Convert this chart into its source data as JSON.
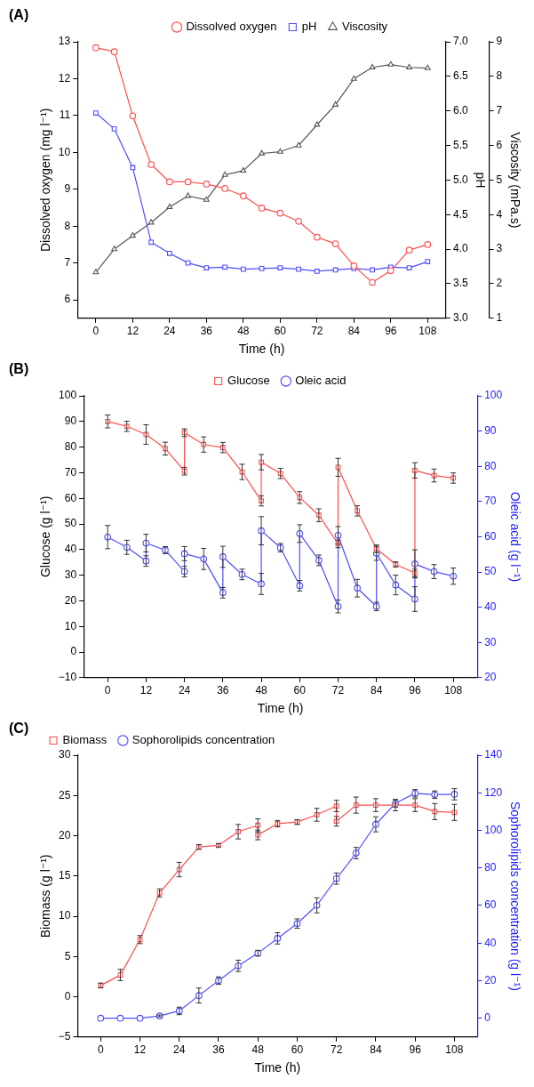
{
  "chart_data": [
    {
      "type": "line",
      "title": "(A)",
      "xlabel": "Time (h)",
      "ylabel": "Dissolved oxygen (mg l⁻¹)",
      "y2label": "pH",
      "y3label": "Viscosity (mPa.s)",
      "legend": "top",
      "x": [
        0,
        6,
        12,
        18,
        24,
        30,
        36,
        42,
        48,
        54,
        60,
        66,
        72,
        78,
        84,
        90,
        96,
        102,
        108
      ],
      "xlim": [
        -6,
        114
      ],
      "xticks": [
        0,
        12,
        24,
        36,
        48,
        60,
        72,
        84,
        96,
        108
      ],
      "ylim": [
        5.5,
        13
      ],
      "yticks": [
        6,
        7,
        8,
        9,
        10,
        11,
        12,
        13
      ],
      "y2lim": [
        3,
        7
      ],
      "y2ticks": [
        {
          "value": 3,
          "label": "3.0"
        },
        {
          "value": 3.5,
          "label": "3.5"
        },
        {
          "value": 4,
          "label": "4.0"
        },
        {
          "value": 4.5,
          "label": "4.5"
        },
        {
          "value": 5,
          "label": "5.0"
        },
        {
          "value": 5.5,
          "label": "5.5"
        },
        {
          "value": 6,
          "label": "6.0"
        },
        {
          "value": 6.5,
          "label": "6.5"
        },
        {
          "value": 7,
          "label": "7.0"
        }
      ],
      "y3lim": [
        1,
        9
      ],
      "y3ticks": [
        1,
        2,
        3,
        4,
        5,
        6,
        7,
        8,
        9
      ],
      "series": [
        {
          "name": "Dissolved oxygen",
          "color": "#ff4d4d",
          "marker": "circle",
          "values": [
            12.84,
            12.73,
            10.99,
            9.67,
            9.2,
            9.2,
            9.14,
            9.02,
            8.82,
            8.49,
            8.35,
            8.13,
            7.7,
            7.52,
            6.92,
            6.47,
            6.79,
            7.35,
            7.5
          ]
        },
        {
          "name": "pH",
          "color": "#4d4dff",
          "marker": "square",
          "axis": "y2",
          "values": [
            5.97,
            5.74,
            5.18,
            4.1,
            3.94,
            3.8,
            3.73,
            3.74,
            3.71,
            3.72,
            3.73,
            3.71,
            3.68,
            3.7,
            3.72,
            3.7,
            3.74,
            3.73,
            3.82
          ]
        },
        {
          "name": "Viscosity",
          "color": "#555555",
          "marker": "triangle",
          "axis": "y3",
          "values": [
            2.33,
            3,
            3.39,
            3.77,
            4.22,
            4.54,
            4.43,
            5.15,
            5.27,
            5.77,
            5.82,
            6,
            6.6,
            7.18,
            7.93,
            8.26,
            8.34,
            8.26,
            8.24
          ]
        }
      ]
    },
    {
      "type": "line",
      "title": "(B)",
      "xlabel": "Time (h)",
      "ylabel": "Glucose (g l⁻¹)",
      "y2label": "Oleic acid (g l⁻¹)",
      "legend": "top",
      "xlim": [
        -7.5,
        115.5
      ],
      "xticks": [
        0,
        12,
        24,
        36,
        48,
        60,
        72,
        84,
        96,
        108
      ],
      "ylim": [
        -10,
        100
      ],
      "yticks": [
        {
          "value": -10,
          "label": "−10"
        },
        0,
        10,
        20,
        30,
        40,
        50,
        60,
        70,
        80,
        90,
        100
      ],
      "y2lim": [
        20,
        100
      ],
      "y2ticks": [
        20,
        30,
        40,
        50,
        60,
        70,
        80,
        90,
        100
      ],
      "series": [
        {
          "name": "Glucose",
          "color": "#ff4d4d",
          "marker": "square",
          "x": [
            0,
            6,
            12,
            18,
            24,
            24,
            30,
            36,
            42,
            48,
            48,
            54,
            60,
            66,
            72,
            72,
            78,
            84,
            90,
            96,
            96,
            102,
            108
          ],
          "values": [
            90,
            88.1,
            84.9,
            79.4,
            70.6,
            85.6,
            81,
            79.8,
            70.3,
            59,
            74.1,
            69.7,
            60.3,
            53.4,
            42.2,
            72.1,
            55.1,
            40.3,
            34.2,
            30.8,
            70.9,
            68.9,
            67.9
          ],
          "errors": [
            2.5,
            2,
            3.8,
            2.5,
            1.5,
            1.5,
            3,
            2,
            3,
            2,
            3,
            2,
            2.3,
            2.5,
            1.5,
            3.5,
            2,
            1.5,
            1,
            1.5,
            3,
            2.5,
            2
          ]
        },
        {
          "name": "Oleic acid",
          "color": "#4d4dff",
          "marker": "circle",
          "axis": "y2",
          "x": [
            0,
            6,
            12,
            12,
            18,
            24,
            24,
            30,
            36,
            36,
            42,
            48,
            48,
            54,
            60,
            60,
            66,
            72,
            72,
            78,
            84,
            84,
            90,
            96,
            96,
            102,
            108
          ],
          "values": [
            59.9,
            57,
            53.1,
            58.2,
            56.2,
            50.1,
            55.2,
            53.7,
            44.1,
            54.3,
            49.3,
            46.6,
            61.7,
            56.9,
            46.1,
            60.9,
            53.3,
            40.2,
            60.4,
            45.4,
            40.2,
            55.3,
            46.3,
            42.3,
            52.3,
            50.1,
            48.8
          ],
          "errors": [
            3.3,
            2,
            1.5,
            2.5,
            1,
            1.5,
            2,
            3,
            1.5,
            3,
            1.5,
            3,
            4,
            1.2,
            1.5,
            2.5,
            1.5,
            1.8,
            2.5,
            2.5,
            1.2,
            2,
            2.8,
            3.5,
            4,
            2,
            2.3
          ]
        }
      ]
    },
    {
      "type": "line",
      "title": "(C)",
      "xlabel": "Time (h)",
      "ylabel": "Biomass (g l⁻¹)",
      "y2label": "Sophorolipids concentration (g l⁻¹)",
      "legend": "top left",
      "xlim": [
        -7,
        115
      ],
      "xticks": [
        0,
        12,
        24,
        36,
        48,
        60,
        72,
        84,
        96,
        108
      ],
      "ylim": [
        -5,
        30
      ],
      "yticks": [
        {
          "value": -5,
          "label": "−5"
        },
        0,
        5,
        10,
        15,
        20,
        25,
        30
      ],
      "y2lim": [
        -10,
        140
      ],
      "y2ticks": [
        0,
        20,
        40,
        60,
        80,
        100,
        120,
        140
      ],
      "series": [
        {
          "name": "Biomass",
          "color": "#ff4d4d",
          "marker": "square",
          "x": [
            0,
            6,
            12,
            18,
            24,
            30,
            36,
            42,
            48,
            48,
            54,
            60,
            66,
            72,
            72,
            78,
            84,
            90,
            96,
            102,
            108
          ],
          "values": [
            1.4,
            2.7,
            7.1,
            12.9,
            15.8,
            18.6,
            18.8,
            20.5,
            21.3,
            20.1,
            21.5,
            21.7,
            22.6,
            23.7,
            21.8,
            23.8,
            23.8,
            23.8,
            23.8,
            23,
            22.9
          ],
          "errors": [
            0.3,
            0.7,
            0.5,
            0.5,
            0.9,
            0.3,
            0.2,
            0.9,
            0.8,
            0.6,
            0.4,
            0.3,
            0.8,
            0.7,
            0.6,
            1,
            0.8,
            0.7,
            0.8,
            1,
            1
          ]
        },
        {
          "name": "Sophorolipids concentration",
          "color": "#4d4dff",
          "marker": "circle",
          "axis": "y2",
          "x": [
            0,
            6,
            12,
            18,
            24,
            30,
            36,
            42,
            48,
            54,
            60,
            66,
            72,
            78,
            84,
            90,
            96,
            102,
            108
          ],
          "values": [
            0,
            0,
            0,
            1.2,
            3.9,
            12.1,
            20,
            27.9,
            34.6,
            42.5,
            50.4,
            60.1,
            74.3,
            87.9,
            103.2,
            114.4,
            119.7,
            119,
            119.2
          ],
          "errors": [
            null,
            null,
            null,
            0.5,
            2,
            4,
            2,
            3,
            1.5,
            3,
            2.5,
            4,
            3,
            3,
            4,
            2,
            2,
            2,
            3
          ]
        }
      ]
    }
  ]
}
